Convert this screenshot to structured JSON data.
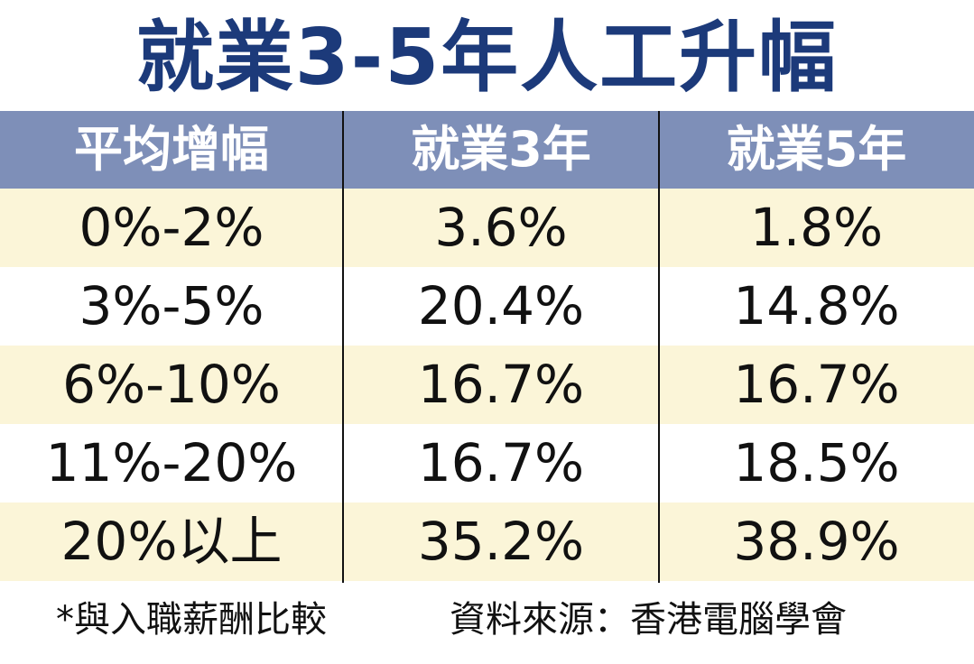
{
  "chart_data": {
    "type": "table",
    "title": "就業3-5年人工升幅",
    "columns": [
      "平均增幅",
      "就業3年",
      "就業5年"
    ],
    "rows": [
      [
        "0%-2%",
        "3.6%",
        "1.8%"
      ],
      [
        "3%-5%",
        "20.4%",
        "14.8%"
      ],
      [
        "6%-10%",
        "16.7%",
        "16.7%"
      ],
      [
        "11%-20%",
        "16.7%",
        "18.5%"
      ],
      [
        "20%以上",
        "35.2%",
        "38.9%"
      ]
    ],
    "series": [
      {
        "name": "就業3年",
        "values": [
          3.6,
          20.4,
          16.7,
          16.7,
          35.2
        ]
      },
      {
        "name": "就業5年",
        "values": [
          1.8,
          14.8,
          16.7,
          18.5,
          38.9
        ]
      }
    ],
    "categories": [
      "0%-2%",
      "3%-5%",
      "6%-10%",
      "11%-20%",
      "20%以上"
    ]
  },
  "footer": {
    "note": "*與入職薪酬比較",
    "source": "資料來源：香港電腦學會"
  },
  "colors": {
    "title": "#1c3a7a",
    "header_bg": "#7e8fb8",
    "stripe_bg": "#fbf5d8"
  }
}
